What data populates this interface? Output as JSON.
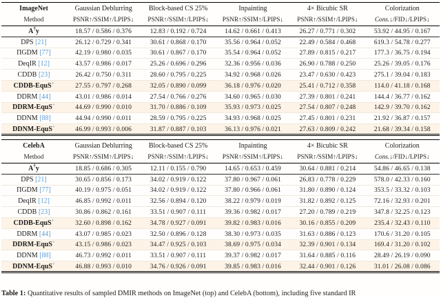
{
  "colors": {
    "citation_blue": "#5b9bd5",
    "row_highlight": "#fdf3e6",
    "rule_black": "#000000"
  },
  "method_header": "Method",
  "column_groups": [
    "Gaussian Deblurring",
    "Block-based CS 25%",
    "Inpainting",
    "4× Bicubic SR",
    "Colorization"
  ],
  "metric_headers": [
    "PSNR↑/SSIM↑/LPIPS↓",
    "PSNR↑/SSIM↑/LPIPS↓",
    "PSNR↑/SSIM↑/LPIPS↓",
    "PSNR↑/SSIM↑/LPIPS↓",
    "Cons.↓/FID↓/LPIPS↓"
  ],
  "tables": [
    {
      "dataset": "ImageNet",
      "rows": [
        {
          "method": "A†y",
          "citation": null,
          "bold": true,
          "highlight": false,
          "values": [
            "18.57 / 0.586 / 0.376",
            "12.83 / 0.192 / 0.724",
            "14.62 / 0.661 / 0.413",
            "26.27 / 0.771 / 0.302",
            "53.92 / 44.95 / 0.167"
          ]
        },
        {
          "method": "DPS",
          "citation": "21",
          "bold": false,
          "highlight": false,
          "values": [
            "26.12 / 0.729 / 0.341",
            "30.61 / 0.868 / 0.170",
            "35.56 / 0.964 / 0.052",
            "22.49 / 0.584 / 0.468",
            "619.3 / 54.78 / 0.277"
          ]
        },
        {
          "method": "ΠGDM",
          "citation": "77",
          "bold": false,
          "highlight": false,
          "values": [
            "42.19 / 0.980 / 0.035",
            "30.61 / 0.867 / 0.170",
            "35.54 / 0.964 / 0.052",
            "27.89 / 0.815 / 0.217",
            "177.3 / 36.75 / 0.194"
          ]
        },
        {
          "method": "DeqIR",
          "citation": "12",
          "bold": false,
          "highlight": false,
          "values": [
            "43.57 / 0.986 / 0.017",
            "25.26 / 0.696 / 0.296",
            "32.36 / 0.956 / 0.036",
            "26.90 / 0.788 / 0.250",
            "25.26 / 39.05 / 0.176"
          ]
        },
        {
          "method": "CDDB",
          "citation": "23",
          "bold": false,
          "highlight": false,
          "values": [
            "26.42 / 0.750 / 0.311",
            "28.60 / 0.795 / 0.225",
            "34.92 / 0.968 / 0.026",
            "23.47 / 0.630 / 0.423",
            "275.1 / 39.04 / 0.183"
          ]
        },
        {
          "method": "CDDB-EquS+",
          "citation": null,
          "bold": true,
          "highlight": true,
          "values": [
            "27.55 / 0.797 / 0.268",
            "32.05 / 0.890 / 0.099",
            "36.18 / 0.976 / 0.020",
            "25.41 / 0.712 / 0.358",
            "114.0 / 41.18 / 0.168"
          ]
        },
        {
          "method": "DDRM",
          "citation": "44",
          "bold": false,
          "highlight": false,
          "values": [
            "43.01 / 0.986 / 0.014",
            "27.54 / 0.766 / 0.276",
            "34.60 / 0.965 / 0.030",
            "27.39 / 0.801 / 0.241",
            "144.4 / 36.77 / 0.162"
          ]
        },
        {
          "method": "DDRM-EquS+",
          "citation": null,
          "bold": true,
          "highlight": true,
          "values": [
            "44.69 / 0.990 / 0.010",
            "31.70 / 0.886 / 0.109",
            "35.93 / 0.973 / 0.025",
            "27.54 / 0.807 / 0.248",
            "142.9 / 39.70 / 0.162"
          ]
        },
        {
          "method": "DDNM",
          "citation": "88",
          "bold": false,
          "highlight": false,
          "values": [
            "44.94 / 0.990 / 0.011",
            "28.59 / 0.795 / 0.225",
            "34.93 / 0.968 / 0.025",
            "27.45 / 0.801 / 0.231",
            "21.92 / 36.87 / 0.157"
          ]
        },
        {
          "method": "DDNM-EquS+",
          "citation": null,
          "bold": true,
          "highlight": true,
          "values": [
            "46.99 / 0.993 / 0.006",
            "31.87 / 0.887 / 0.103",
            "36.13 / 0.976 / 0.021",
            "27.63 / 0.809 / 0.242",
            "21.68 / 39.34 / 0.158"
          ]
        }
      ]
    },
    {
      "dataset": "CelebA",
      "rows": [
        {
          "method": "A†y",
          "citation": null,
          "bold": true,
          "highlight": false,
          "values": [
            "18.85 / 0.686 / 0.305",
            "12.11 / 0.155 / 0.790",
            "14.65 / 0.653 / 0.459",
            "30.64 / 0.881 / 0.214",
            "54.86 / 46.65 / 0.138"
          ]
        },
        {
          "method": "DPS",
          "citation": "21",
          "bold": false,
          "highlight": false,
          "values": [
            "30.65 / 0.856 / 0.173",
            "34.02 / 0.919 / 0.122",
            "37.80 / 0.967 / 0.061",
            "26.83 / 0.778 / 0.229",
            "578.0 / 42.33 / 0.160"
          ]
        },
        {
          "method": "ΠGDM",
          "citation": "77",
          "bold": false,
          "highlight": false,
          "values": [
            "40.19 / 0.975 / 0.051",
            "34.02 / 0.919 / 0.122",
            "37.80 / 0.966 / 0.061",
            "31.80 / 0.890 / 0.124",
            "353.5 / 33.32 / 0.103"
          ]
        },
        {
          "method": "DeqIR",
          "citation": "12",
          "bold": false,
          "highlight": false,
          "values": [
            "46.85 / 0.992 / 0.011",
            "32.56 / 0.894 / 0.120",
            "38.22 / 0.979 / 0.019",
            "31.82 / 0.892 / 0.125",
            "72.16 / 32.93 / 0.201"
          ]
        },
        {
          "method": "CDDB",
          "citation": "23",
          "bold": false,
          "highlight": false,
          "values": [
            "30.86 / 0.862 / 0.161",
            "33.51 / 0.907 / 0.111",
            "39.36 / 0.982 / 0.017",
            "27.20 / 0.789 / 0.219",
            "347.8 / 32.25 / 0.123"
          ]
        },
        {
          "method": "CDDB-EquS+",
          "citation": null,
          "bold": true,
          "highlight": true,
          "values": [
            "32.60 / 0.898 / 0.162",
            "34.78 / 0.927 / 0.091",
            "39.82 / 0.983 / 0.016",
            "30.16 / 0.855 / 0.209",
            "235.4 / 32.43 / 0.110"
          ]
        },
        {
          "method": "DDRM",
          "citation": "44",
          "bold": false,
          "highlight": false,
          "values": [
            "43.07 / 0.985 / 0.023",
            "32.50 / 0.896 / 0.128",
            "38.30 / 0.973 / 0.035",
            "31.63 / 0.886 / 0.123",
            "170.6 / 31.20 / 0.105"
          ]
        },
        {
          "method": "DDRM-EquS+",
          "citation": null,
          "bold": true,
          "highlight": true,
          "values": [
            "43.15 / 0.986 / 0.023",
            "34.47 / 0.925 / 0.103",
            "38.69 / 0.975 / 0.034",
            "32.39 / 0.901 / 0.134",
            "169.4 / 31.20 / 0.102"
          ]
        },
        {
          "method": "DDNM",
          "citation": "88",
          "bold": false,
          "highlight": false,
          "values": [
            "46.73 / 0.992 / 0.011",
            "33.51 / 0.907 / 0.111",
            "39.37 / 0.982 / 0.017",
            "31.64 / 0.885 / 0.116",
            "28.49 / 26.19 / 0.090"
          ]
        },
        {
          "method": "DDNM-EquS+",
          "citation": null,
          "bold": true,
          "highlight": true,
          "values": [
            "46.88 / 0.993 / 0.010",
            "34.76 / 0.926 / 0.091",
            "39.85 / 0.983 / 0.016",
            "32.44 / 0.901 / 0.126",
            "31.01 / 26.08 / 0.086"
          ]
        }
      ]
    }
  ],
  "caption": {
    "label": "Table 1:",
    "text": "Quantitative results of sampled DMIR methods on ImageNet (top) and CelebA (bottom), including five standard IR"
  }
}
